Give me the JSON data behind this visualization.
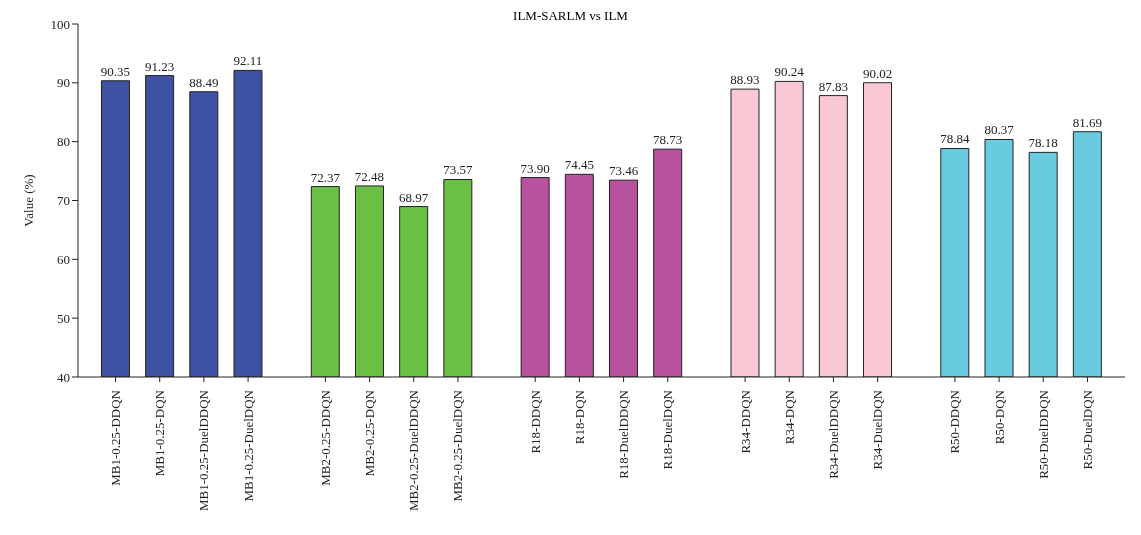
{
  "chart_data": {
    "type": "bar",
    "title": "ILM-SARLM vs ILM",
    "ylabel": "Value (%)",
    "categories": [
      "MB1-0.25-DDQN",
      "MB1-0.25-DQN",
      "MB1-0.25-DuelDDQN",
      "MB1-0.25-DuelDQN",
      "MB2-0.25-DDQN",
      "MB2-0.25-DQN",
      "MB2-0.25-DuelDDQN",
      "MB2-0.25-DuelDQN",
      "R18-DDQN",
      "R18-DQN",
      "R18-DuelDDQN",
      "R18-DuelDQN",
      "R34-DDQN",
      "R34-DQN",
      "R34-DuelDDQN",
      "R34-DuelDQN",
      "R50-DDQN",
      "R50-DQN",
      "R50-DuelDDQN",
      "R50-DuelDQN"
    ],
    "values": [
      90.35,
      91.23,
      88.49,
      92.11,
      72.37,
      72.48,
      68.97,
      73.57,
      73.9,
      74.45,
      73.46,
      78.73,
      88.93,
      90.24,
      87.83,
      90.02,
      78.84,
      80.37,
      78.18,
      81.69
    ],
    "value_labels": [
      "90.35",
      "91.23",
      "88.49",
      "92.11",
      "72.37",
      "72.48",
      "68.97",
      "73.57",
      "73.90",
      "74.45",
      "73.46",
      "78.73",
      "88.93",
      "90.24",
      "87.83",
      "90.02",
      "78.84",
      "80.37",
      "78.18",
      "81.69"
    ],
    "colors": [
      "#3f51a3",
      "#3f51a3",
      "#3f51a3",
      "#3f51a3",
      "#6abf45",
      "#6abf45",
      "#6abf45",
      "#6abf45",
      "#b8529f",
      "#b8529f",
      "#b8529f",
      "#b8529f",
      "#f9c8d4",
      "#f9c8d4",
      "#f9c8d4",
      "#f9c8d4",
      "#68cbe0",
      "#68cbe0",
      "#68cbe0",
      "#68cbe0"
    ],
    "ylim": [
      40,
      100
    ],
    "yticks": [
      40,
      50,
      60,
      70,
      80,
      90,
      100
    ],
    "grid": false,
    "legend": false
  }
}
